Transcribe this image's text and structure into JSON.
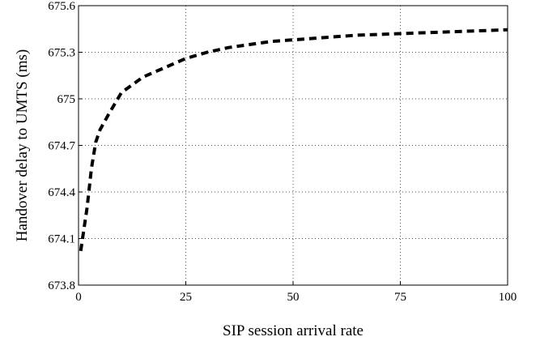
{
  "chart_data": {
    "type": "line",
    "title": "",
    "xlabel": "SIP session arrival rate",
    "ylabel": "Handover delay to UMTS (ms)",
    "xlim": [
      0,
      100
    ],
    "ylim": [
      673.8,
      675.6
    ],
    "xticks": [
      0,
      25,
      50,
      75,
      100
    ],
    "xtick_labels": [
      "0",
      "25",
      "50",
      "75",
      "100"
    ],
    "yticks": [
      673.8,
      674.1,
      674.4,
      674.7,
      675,
      675.3,
      675.6
    ],
    "ytick_labels": [
      "673.8",
      "674.1",
      "674.4",
      "674.7",
      "675",
      "675.3",
      "675.6"
    ],
    "grid": true,
    "legend": "none",
    "series": [
      {
        "color": "#000000",
        "style": "dashed",
        "x": [
          0.5,
          2,
          3,
          4,
          5,
          7,
          10,
          15,
          20,
          25,
          30,
          35,
          40,
          45,
          50,
          55,
          60,
          65,
          70,
          75,
          80,
          85,
          90,
          95,
          100
        ],
        "y": [
          674.02,
          674.3,
          674.55,
          674.72,
          674.8,
          674.9,
          675.04,
          675.14,
          675.2,
          675.26,
          675.3,
          675.33,
          675.35,
          675.37,
          675.38,
          675.39,
          675.4,
          675.41,
          675.415,
          675.42,
          675.425,
          675.43,
          675.435,
          675.44,
          675.445
        ]
      }
    ]
  }
}
